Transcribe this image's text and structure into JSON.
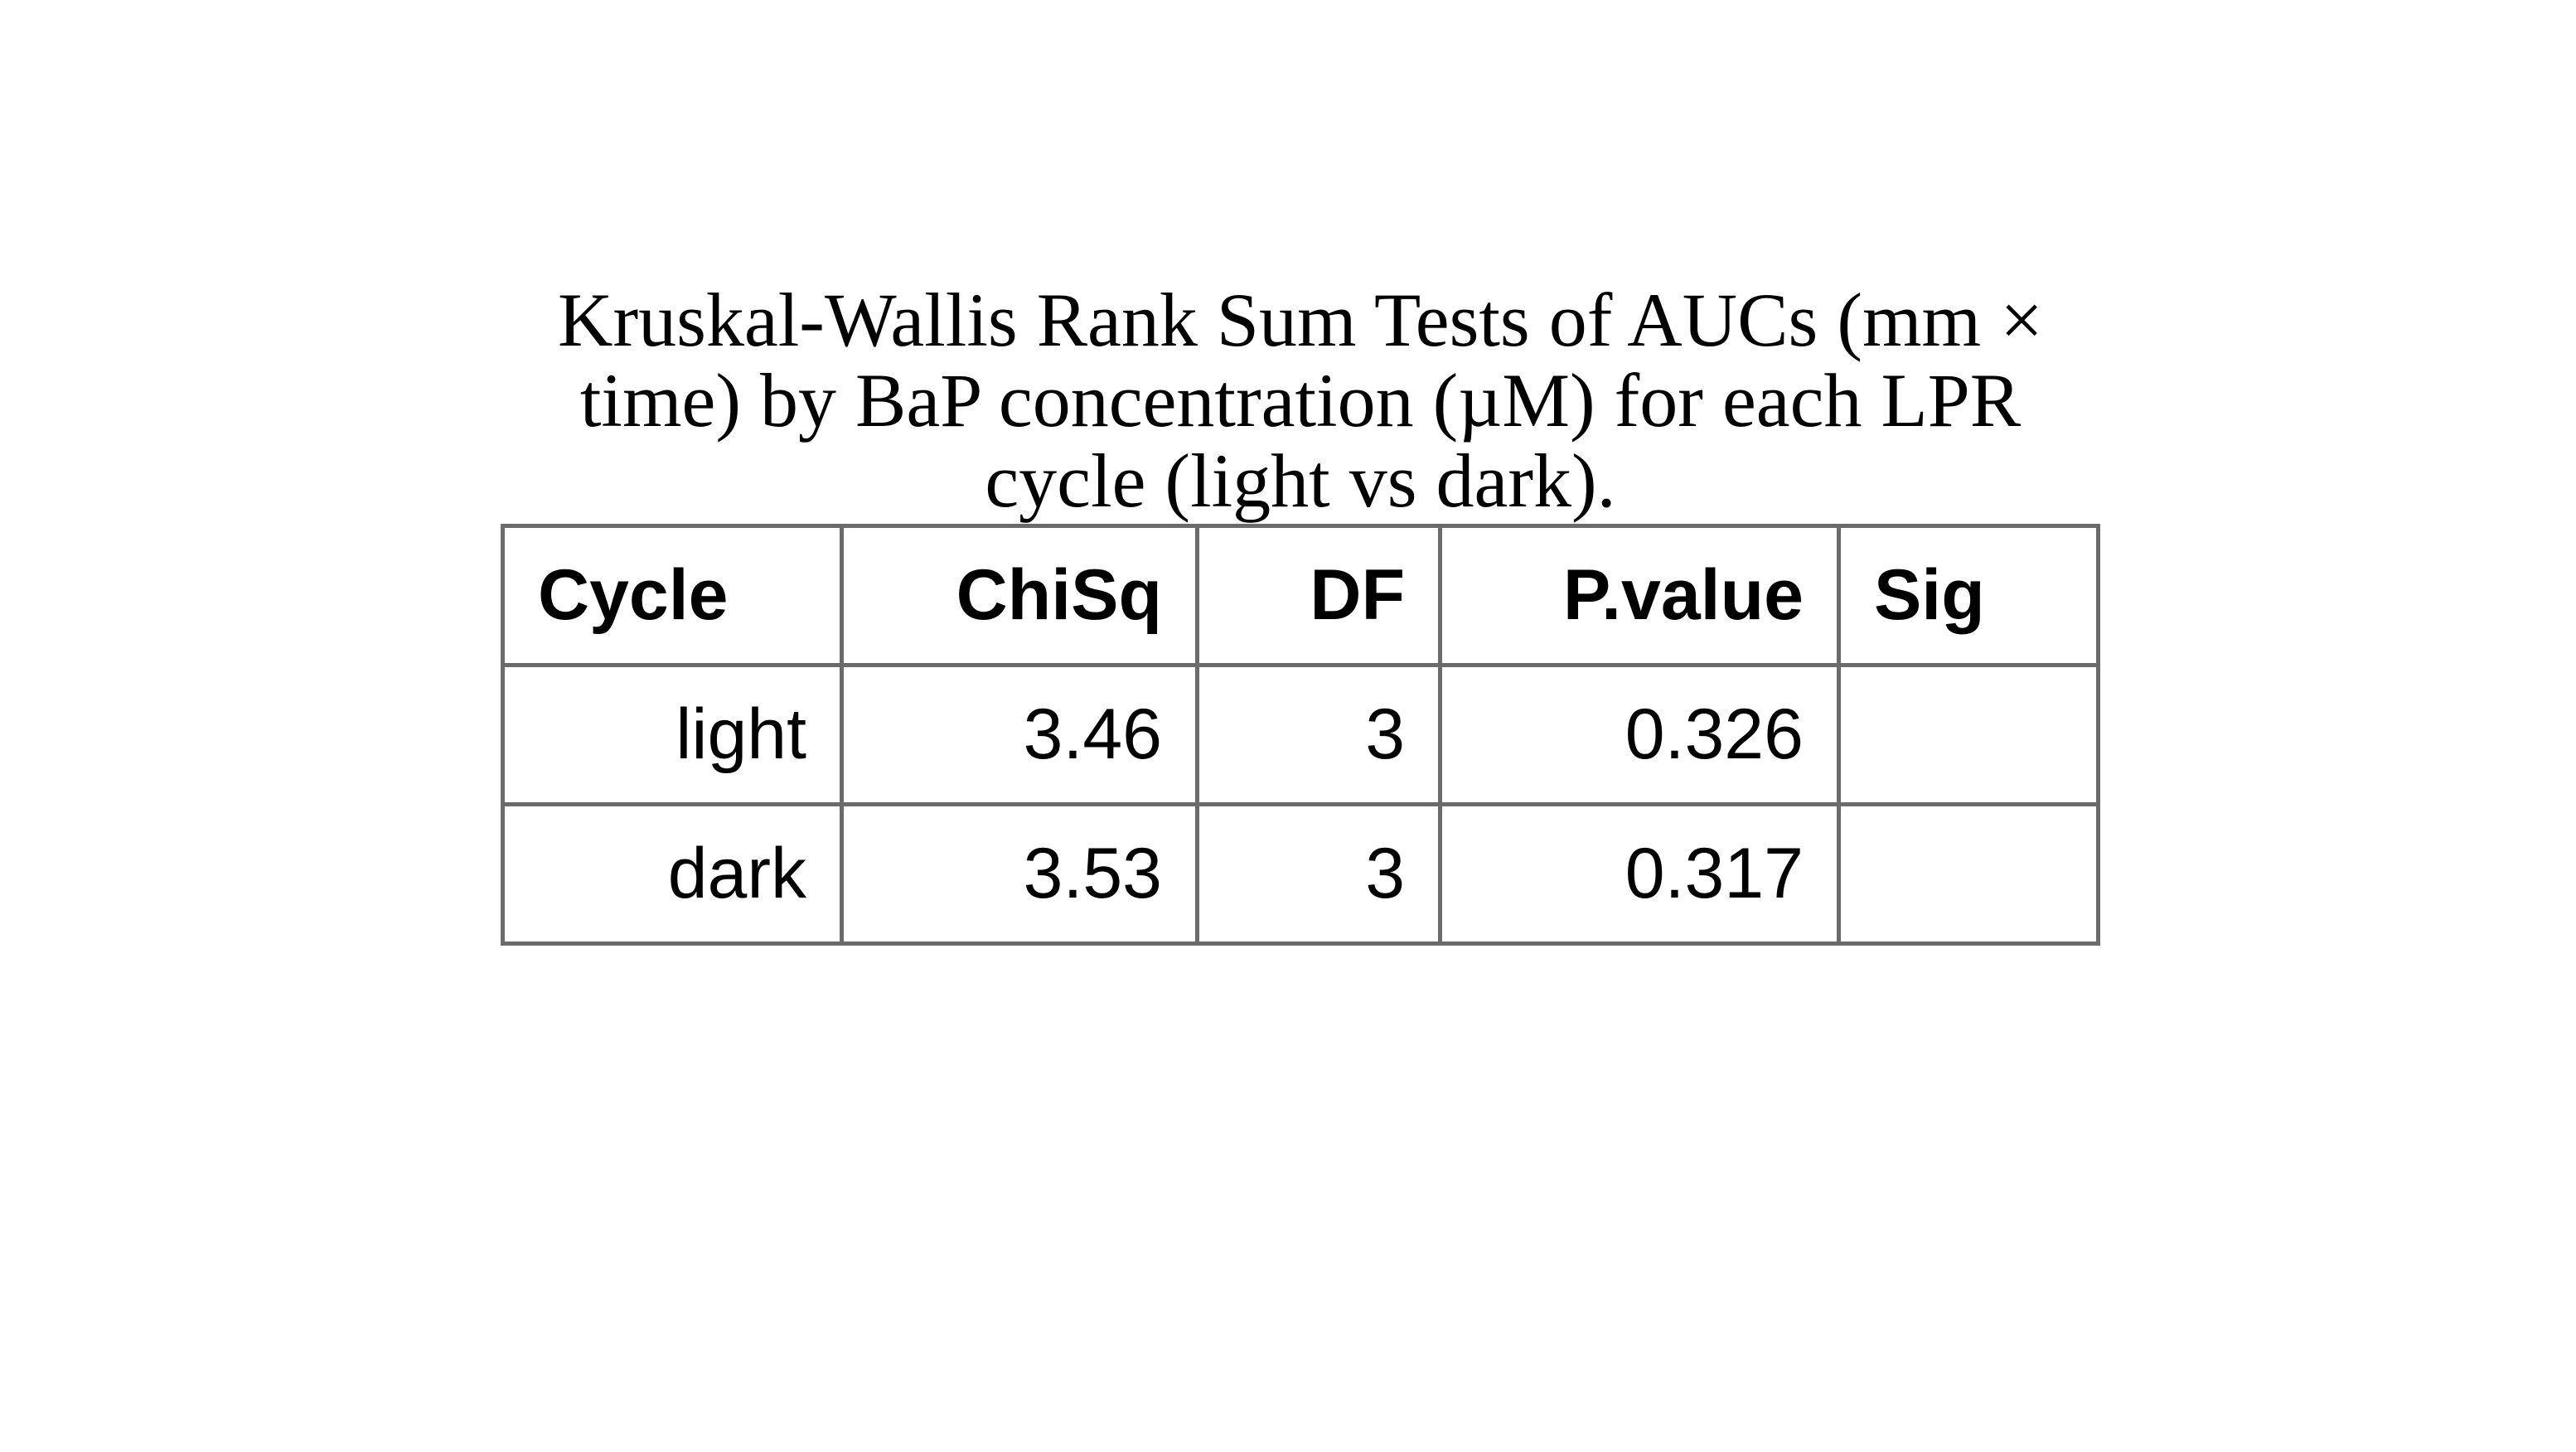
{
  "caption": "Kruskal-Wallis Rank Sum Tests of AUCs (mm × time) by BaP concentration (µM) for each LPR cycle (light vs dark).",
  "table": {
    "headers": [
      "Cycle",
      "ChiSq",
      "DF",
      "P.value",
      "Sig"
    ],
    "rows": [
      [
        "light",
        "3.46",
        "3",
        "0.326",
        ""
      ],
      [
        "dark",
        "3.53",
        "3",
        "0.317",
        ""
      ]
    ]
  },
  "chart_data": {
    "type": "table",
    "title": "Kruskal-Wallis Rank Sum Tests of AUCs (mm × time) by BaP concentration (µM) for each LPR cycle (light vs dark).",
    "columns": [
      "Cycle",
      "ChiSq",
      "DF",
      "P.value",
      "Sig"
    ],
    "rows": [
      {
        "Cycle": "light",
        "ChiSq": 3.46,
        "DF": 3,
        "P.value": 0.326,
        "Sig": ""
      },
      {
        "Cycle": "dark",
        "ChiSq": 3.53,
        "DF": 3,
        "P.value": 0.317,
        "Sig": ""
      }
    ]
  }
}
